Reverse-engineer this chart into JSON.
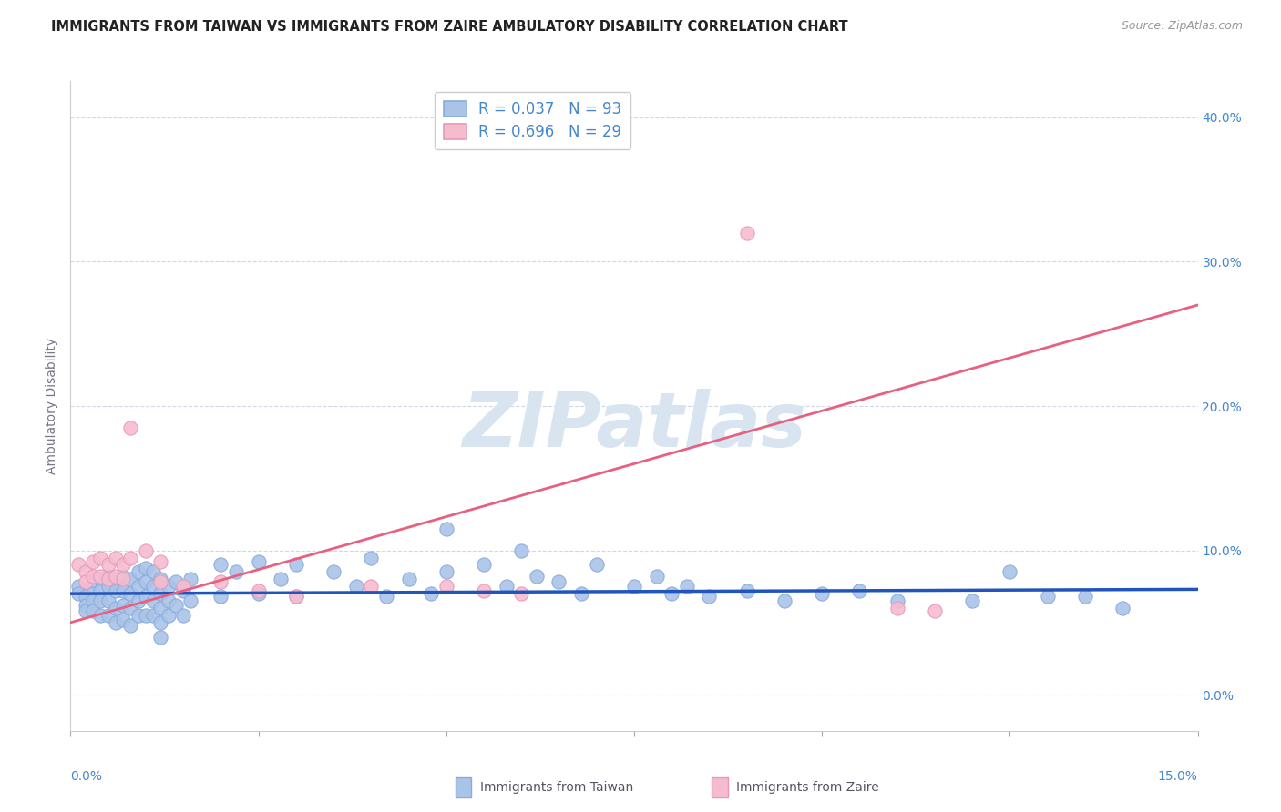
{
  "title": "IMMIGRANTS FROM TAIWAN VS IMMIGRANTS FROM ZAIRE AMBULATORY DISABILITY CORRELATION CHART",
  "source": "Source: ZipAtlas.com",
  "ylabel": "Ambulatory Disability",
  "ytick_vals": [
    0.0,
    0.1,
    0.2,
    0.3,
    0.4
  ],
  "ytick_labels": [
    "0.0%",
    "10.0%",
    "20.0%",
    "30.0%",
    "40.0%"
  ],
  "xrange": [
    0.0,
    0.15
  ],
  "yrange": [
    -0.025,
    0.425
  ],
  "taiwan_color": "#aac4e8",
  "taiwan_edge_color": "#88aadd",
  "zaire_color": "#f5bcd0",
  "zaire_edge_color": "#e898b8",
  "taiwan_line_color": "#2255bb",
  "zaire_line_color": "#e86080",
  "taiwan_R": 0.037,
  "taiwan_N": 93,
  "zaire_R": 0.696,
  "zaire_N": 29,
  "legend_label_taiwan": "Immigrants from Taiwan",
  "legend_label_zaire": "Immigrants from Zaire",
  "watermark": "ZIPatlas",
  "taiwan_points": [
    [
      0.001,
      0.075
    ],
    [
      0.001,
      0.07
    ],
    [
      0.002,
      0.068
    ],
    [
      0.002,
      0.062
    ],
    [
      0.002,
      0.058
    ],
    [
      0.003,
      0.078
    ],
    [
      0.003,
      0.07
    ],
    [
      0.003,
      0.065
    ],
    [
      0.003,
      0.058
    ],
    [
      0.004,
      0.08
    ],
    [
      0.004,
      0.072
    ],
    [
      0.004,
      0.065
    ],
    [
      0.004,
      0.055
    ],
    [
      0.005,
      0.082
    ],
    [
      0.005,
      0.075
    ],
    [
      0.005,
      0.065
    ],
    [
      0.005,
      0.055
    ],
    [
      0.006,
      0.08
    ],
    [
      0.006,
      0.072
    ],
    [
      0.006,
      0.06
    ],
    [
      0.006,
      0.05
    ],
    [
      0.007,
      0.082
    ],
    [
      0.007,
      0.072
    ],
    [
      0.007,
      0.062
    ],
    [
      0.007,
      0.052
    ],
    [
      0.008,
      0.08
    ],
    [
      0.008,
      0.07
    ],
    [
      0.008,
      0.06
    ],
    [
      0.008,
      0.048
    ],
    [
      0.009,
      0.085
    ],
    [
      0.009,
      0.075
    ],
    [
      0.009,
      0.065
    ],
    [
      0.009,
      0.055
    ],
    [
      0.01,
      0.088
    ],
    [
      0.01,
      0.078
    ],
    [
      0.01,
      0.068
    ],
    [
      0.01,
      0.055
    ],
    [
      0.011,
      0.085
    ],
    [
      0.011,
      0.075
    ],
    [
      0.011,
      0.065
    ],
    [
      0.011,
      0.055
    ],
    [
      0.012,
      0.08
    ],
    [
      0.012,
      0.07
    ],
    [
      0.012,
      0.06
    ],
    [
      0.012,
      0.05
    ],
    [
      0.012,
      0.04
    ],
    [
      0.013,
      0.075
    ],
    [
      0.013,
      0.065
    ],
    [
      0.013,
      0.055
    ],
    [
      0.014,
      0.078
    ],
    [
      0.014,
      0.062
    ],
    [
      0.015,
      0.072
    ],
    [
      0.015,
      0.055
    ],
    [
      0.016,
      0.08
    ],
    [
      0.016,
      0.065
    ],
    [
      0.02,
      0.09
    ],
    [
      0.02,
      0.068
    ],
    [
      0.022,
      0.085
    ],
    [
      0.025,
      0.092
    ],
    [
      0.025,
      0.07
    ],
    [
      0.028,
      0.08
    ],
    [
      0.03,
      0.09
    ],
    [
      0.03,
      0.068
    ],
    [
      0.035,
      0.085
    ],
    [
      0.038,
      0.075
    ],
    [
      0.04,
      0.095
    ],
    [
      0.042,
      0.068
    ],
    [
      0.045,
      0.08
    ],
    [
      0.048,
      0.07
    ],
    [
      0.05,
      0.115
    ],
    [
      0.05,
      0.085
    ],
    [
      0.055,
      0.09
    ],
    [
      0.058,
      0.075
    ],
    [
      0.06,
      0.1
    ],
    [
      0.062,
      0.082
    ],
    [
      0.065,
      0.078
    ],
    [
      0.068,
      0.07
    ],
    [
      0.07,
      0.09
    ],
    [
      0.075,
      0.075
    ],
    [
      0.078,
      0.082
    ],
    [
      0.08,
      0.07
    ],
    [
      0.082,
      0.075
    ],
    [
      0.085,
      0.068
    ],
    [
      0.09,
      0.072
    ],
    [
      0.095,
      0.065
    ],
    [
      0.1,
      0.07
    ],
    [
      0.105,
      0.072
    ],
    [
      0.11,
      0.065
    ],
    [
      0.12,
      0.065
    ],
    [
      0.125,
      0.085
    ],
    [
      0.13,
      0.068
    ],
    [
      0.135,
      0.068
    ],
    [
      0.14,
      0.06
    ]
  ],
  "zaire_points": [
    [
      0.001,
      0.09
    ],
    [
      0.002,
      0.085
    ],
    [
      0.002,
      0.078
    ],
    [
      0.003,
      0.092
    ],
    [
      0.003,
      0.082
    ],
    [
      0.004,
      0.095
    ],
    [
      0.004,
      0.082
    ],
    [
      0.005,
      0.09
    ],
    [
      0.005,
      0.08
    ],
    [
      0.006,
      0.095
    ],
    [
      0.006,
      0.082
    ],
    [
      0.007,
      0.09
    ],
    [
      0.007,
      0.08
    ],
    [
      0.008,
      0.095
    ],
    [
      0.008,
      0.185
    ],
    [
      0.01,
      0.1
    ],
    [
      0.012,
      0.092
    ],
    [
      0.012,
      0.078
    ],
    [
      0.015,
      0.075
    ],
    [
      0.02,
      0.078
    ],
    [
      0.025,
      0.072
    ],
    [
      0.03,
      0.068
    ],
    [
      0.04,
      0.075
    ],
    [
      0.05,
      0.075
    ],
    [
      0.055,
      0.072
    ],
    [
      0.06,
      0.07
    ],
    [
      0.09,
      0.32
    ],
    [
      0.11,
      0.06
    ],
    [
      0.115,
      0.058
    ]
  ],
  "taiwan_trend_x": [
    0.0,
    0.15
  ],
  "taiwan_trend_y": [
    0.07,
    0.073
  ],
  "zaire_trend_x": [
    0.0,
    0.15
  ],
  "zaire_trend_y": [
    0.05,
    0.27
  ],
  "grid_color": "#d0d8e8",
  "bg_color": "#ffffff",
  "title_fontsize": 10.5,
  "axis_label_fontsize": 10,
  "legend_fontsize": 12,
  "watermark_color": "#d8e4f0",
  "watermark_fontsize": 60,
  "marker_size": 120,
  "marker_lw": 0.8
}
